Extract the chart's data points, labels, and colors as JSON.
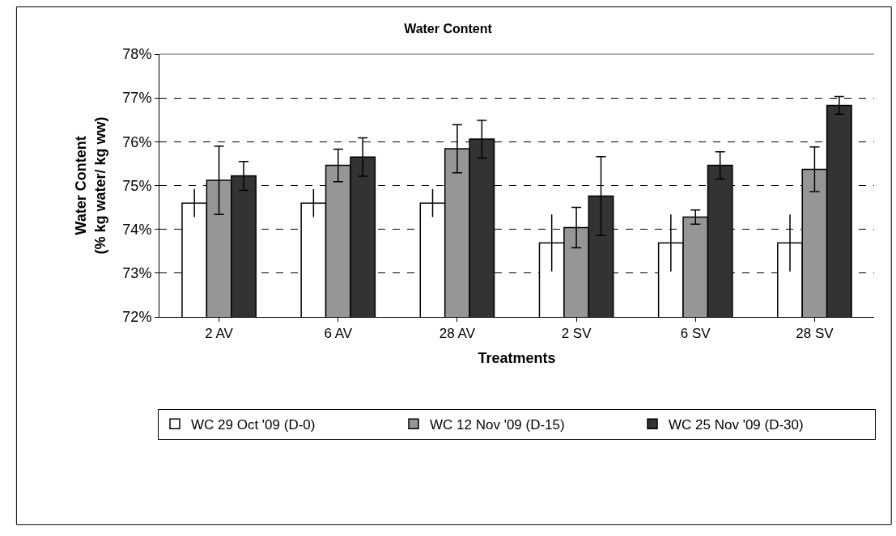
{
  "chart_data": {
    "type": "bar",
    "title": "Water Content",
    "xlabel": "Treatments",
    "ylabel": "Water Content\n(% kg water/ kg ww)",
    "categories": [
      "2 AV",
      "6 AV",
      "28 AV",
      "2 SV",
      "6 SV",
      "28 SV"
    ],
    "series": [
      {
        "name": "WC 29 Oct '09 (D-0)",
        "color": "#ffffff",
        "values": [
          74.6,
          74.6,
          74.6,
          73.69,
          73.69,
          73.69
        ],
        "errors": [
          0.32,
          0.32,
          0.32,
          0.65,
          0.65,
          0.65
        ]
      },
      {
        "name": "WC 12 Nov '09 (D-15)",
        "color": "#969696",
        "values": [
          75.12,
          75.46,
          75.84,
          74.04,
          74.28,
          75.37
        ],
        "errors": [
          0.78,
          0.37,
          0.55,
          0.46,
          0.16,
          0.51
        ]
      },
      {
        "name": "WC 25 Nov '09 (D-30)",
        "color": "#333333",
        "values": [
          75.22,
          75.65,
          76.06,
          74.76,
          75.46,
          76.83
        ],
        "errors": [
          0.33,
          0.44,
          0.43,
          0.9,
          0.31,
          0.2
        ]
      }
    ],
    "ylim": [
      72,
      78
    ],
    "yticks": [
      {
        "value": 72,
        "label": "72%"
      },
      {
        "value": 73,
        "label": "73%"
      },
      {
        "value": 74,
        "label": "74%"
      },
      {
        "value": 75,
        "label": "75%"
      },
      {
        "value": 76,
        "label": "76%"
      },
      {
        "value": 77,
        "label": "77%"
      },
      {
        "value": 78,
        "label": "78%"
      }
    ],
    "grid": "y",
    "legend": "bottom"
  }
}
